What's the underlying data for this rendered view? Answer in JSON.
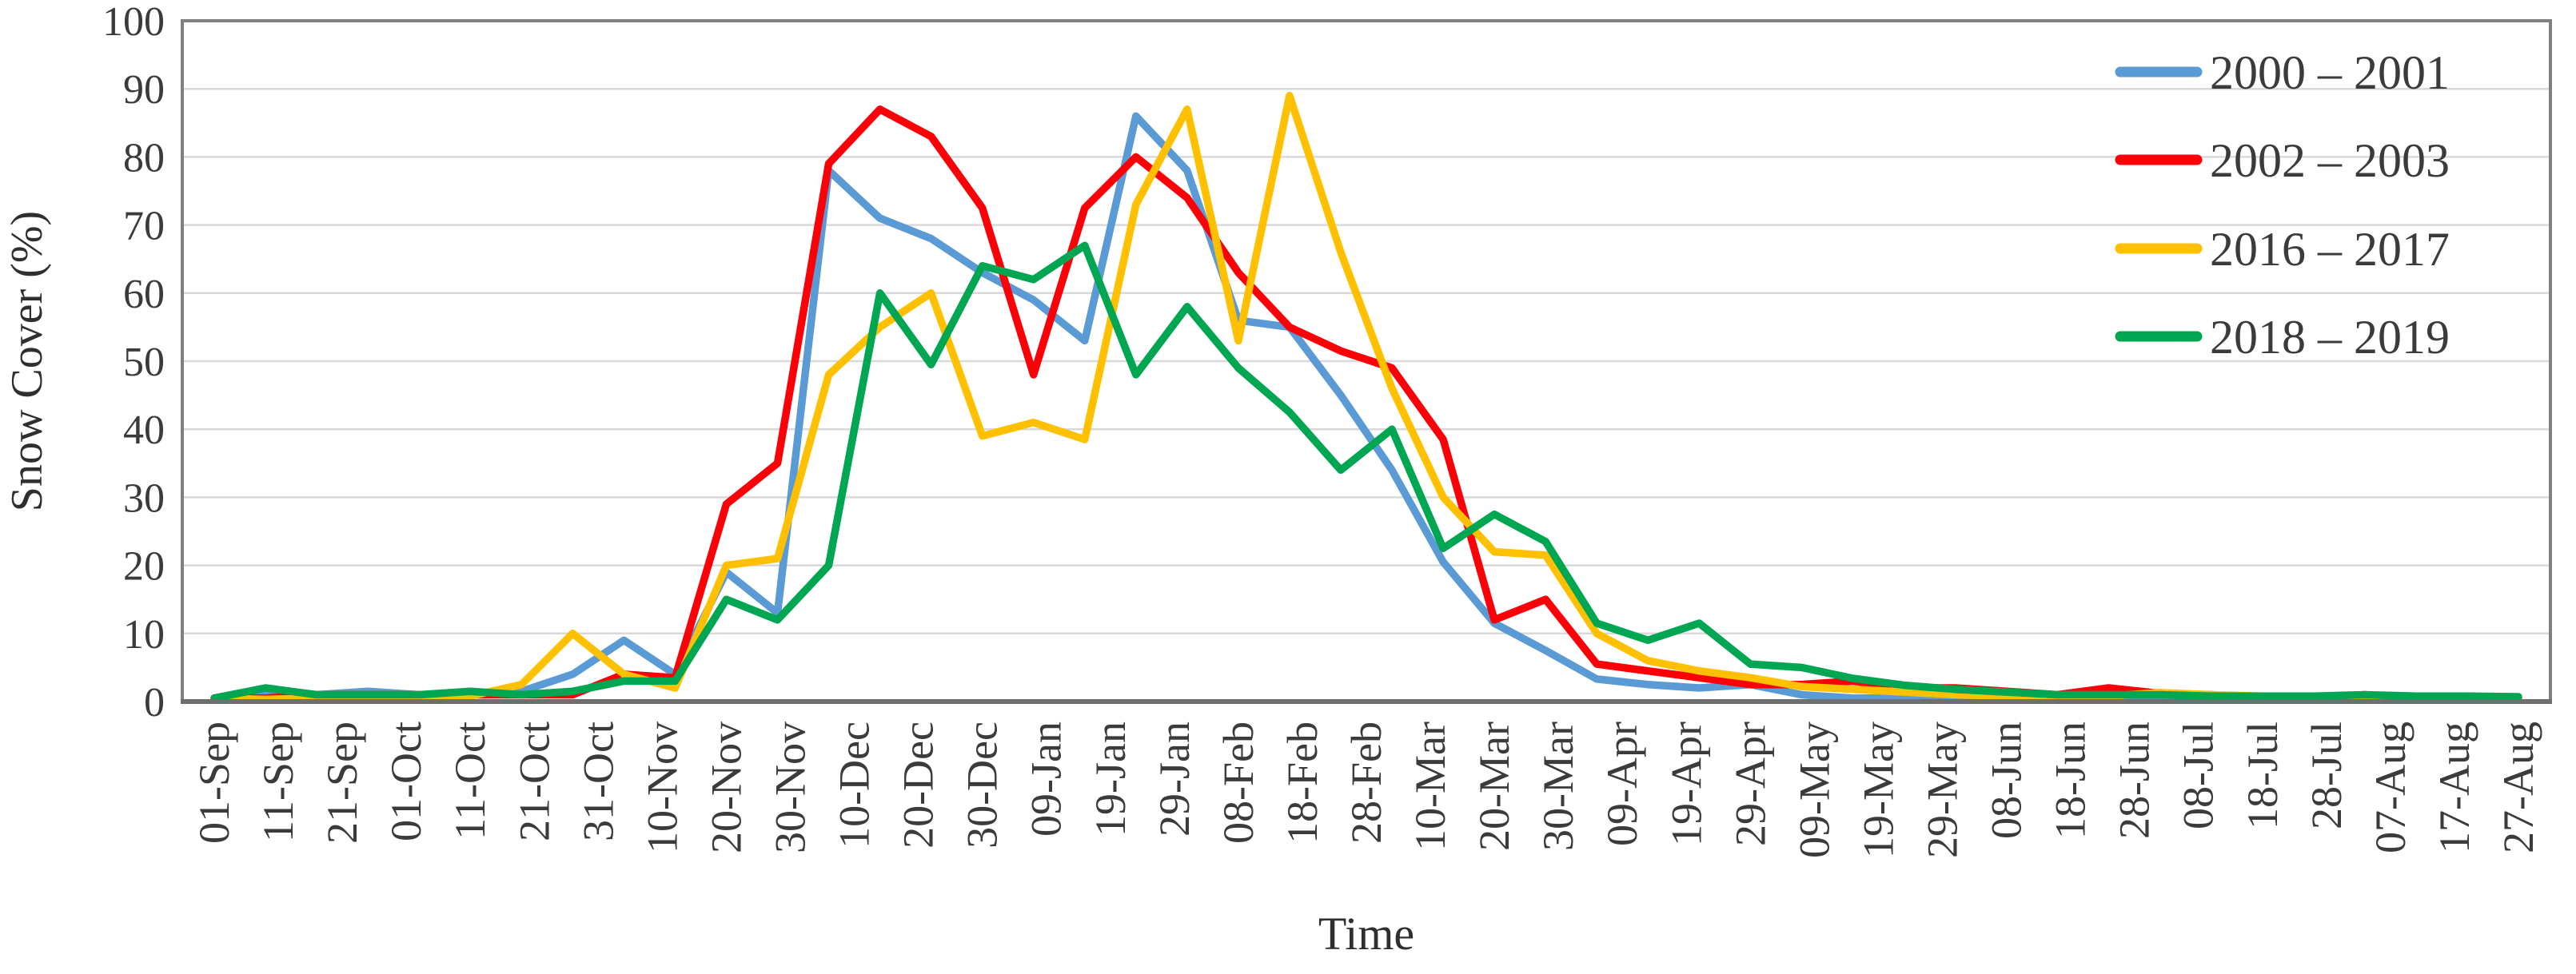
{
  "figure": {
    "y_axis_title": "Snow Cover (%)",
    "x_axis_title": "Time"
  },
  "colors": {
    "grid": "#d9d9d9",
    "plot_border": "#808080",
    "axis_line": "#6e6e6e",
    "tick_text": "#3b3b3b",
    "legend_text": "#3b3b3b",
    "series_blue": "#5b9bd5",
    "series_red": "#fb0007",
    "series_yellow": "#ffc000",
    "series_green": "#00a651"
  },
  "chart_data": {
    "type": "line",
    "title": "",
    "xlabel": "Time",
    "ylabel": "Snow Cover (%)",
    "ylim": [
      0,
      100
    ],
    "y_ticks": [
      0,
      10,
      20,
      30,
      40,
      50,
      60,
      70,
      80,
      90,
      100
    ],
    "grid": "horizontal",
    "legend_position": "top-right-inside",
    "x_tick_labels": [
      "01-Sep",
      "11-Sep",
      "21-Sep",
      "01-Oct",
      "11-Oct",
      "21-Oct",
      "31-Oct",
      "10-Nov",
      "20-Nov",
      "30-Nov",
      "10-Dec",
      "20-Dec",
      "30-Dec",
      "09-Jan",
      "19-Jan",
      "29-Jan",
      "08-Feb",
      "18-Feb",
      "28-Feb",
      "10-Mar",
      "20-Mar",
      "30-Mar",
      "09-Apr",
      "19-Apr",
      "29-Apr",
      "09-May",
      "19-May",
      "29-May",
      "08-Jun",
      "18-Jun",
      "28-Jun",
      "08-Jul",
      "18-Jul",
      "28-Jul",
      "07-Aug",
      "17-Aug",
      "27-Aug"
    ],
    "x": [
      "01-Sep",
      "09-Sep",
      "17-Sep",
      "25-Sep",
      "03-Oct",
      "11-Oct",
      "19-Oct",
      "27-Oct",
      "04-Nov",
      "12-Nov",
      "20-Nov",
      "28-Nov",
      "06-Dec",
      "14-Dec",
      "22-Dec",
      "30-Dec",
      "07-Jan",
      "15-Jan",
      "23-Jan",
      "31-Jan",
      "08-Feb",
      "16-Feb",
      "24-Feb",
      "04-Mar",
      "12-Mar",
      "20-Mar",
      "28-Mar",
      "05-Apr",
      "13-Apr",
      "21-Apr",
      "29-Apr",
      "07-May",
      "15-May",
      "23-May",
      "31-May",
      "08-Jun",
      "16-Jun",
      "24-Jun",
      "02-Jul",
      "10-Jul",
      "18-Jul",
      "26-Jul",
      "03-Aug",
      "11-Aug",
      "19-Aug",
      "27-Aug"
    ],
    "series": [
      {
        "name": "2000 – 2001",
        "color_key": "series_blue",
        "values": [
          0.5,
          1,
          1,
          1.5,
          1,
          1,
          1.5,
          4,
          9,
          4,
          19,
          13,
          78,
          71,
          68,
          63,
          59,
          53,
          86,
          78,
          56,
          55,
          45,
          34,
          20.5,
          11.5,
          7.5,
          3.3,
          2.5,
          2,
          2.5,
          1,
          0.5,
          0.5,
          0.5,
          0.5,
          0.5,
          0.5,
          0.5,
          0.5,
          0.5,
          0.5,
          0.5,
          0.5,
          0.5,
          0.5
        ]
      },
      {
        "name": "2002 – 2003",
        "color_key": "series_red",
        "values": [
          0.5,
          0.5,
          1,
          1,
          1,
          1,
          1,
          1,
          4,
          3.5,
          29,
          35,
          79,
          87,
          83,
          72.5,
          48,
          72.5,
          80,
          74,
          63,
          55,
          51.5,
          49,
          38.5,
          12,
          15,
          5.5,
          4.5,
          3.5,
          2.5,
          2.5,
          3,
          2,
          2,
          1.5,
          1,
          2,
          1.2,
          1,
          0.5,
          0.5,
          1,
          0.5,
          0.5,
          0.5
        ]
      },
      {
        "name": "2016 – 2017",
        "color_key": "series_yellow",
        "values": [
          0.5,
          0.3,
          0.5,
          0.5,
          0.5,
          0.8,
          2.5,
          10,
          4,
          2,
          20,
          21,
          48,
          55,
          60,
          39,
          41,
          38.5,
          73,
          87,
          53,
          89,
          66,
          46,
          30,
          22,
          21.5,
          10,
          6,
          4.5,
          3.5,
          2.2,
          1.8,
          1.4,
          1,
          0.8,
          0.8,
          0.8,
          1.3,
          1,
          0.8,
          0.8,
          0.8,
          0.8,
          0.8,
          0.5
        ]
      },
      {
        "name": "2018 – 2019",
        "color_key": "series_green",
        "values": [
          0.5,
          2,
          1,
          1,
          1,
          1.5,
          1,
          1.5,
          3,
          3,
          15,
          12,
          20,
          60,
          49.5,
          64,
          62,
          67,
          48,
          58,
          49,
          42.5,
          34,
          40,
          22.5,
          27.5,
          23.5,
          11.5,
          9,
          11.5,
          5.5,
          5,
          3.4,
          2.4,
          1.8,
          1.4,
          1,
          1,
          1,
          0.8,
          0.8,
          0.8,
          1,
          0.8,
          0.8,
          0.7
        ]
      }
    ]
  }
}
